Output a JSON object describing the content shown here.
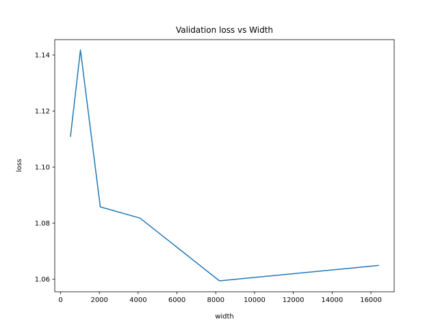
{
  "chart_data": {
    "type": "line",
    "title": "Validation loss vs Width",
    "xlabel": "width",
    "ylabel": "loss",
    "xlim": [
      -300,
      17200
    ],
    "ylim": [
      1.0555,
      1.1455
    ],
    "xticks": [
      0,
      2000,
      4000,
      6000,
      8000,
      10000,
      12000,
      14000,
      16000
    ],
    "yticks": [
      1.06,
      1.08,
      1.1,
      1.12,
      1.14
    ],
    "ytick_labels": [
      "1.06",
      "1.08",
      "1.10",
      "1.12",
      "1.14"
    ],
    "grid": false,
    "legend": "none",
    "series": [
      {
        "color": "#1f77b4",
        "x": [
          512,
          1024,
          2048,
          4096,
          8192,
          16384
        ],
        "y": [
          1.111,
          1.1418,
          1.0858,
          1.0818,
          1.0594,
          1.0649
        ]
      }
    ]
  }
}
